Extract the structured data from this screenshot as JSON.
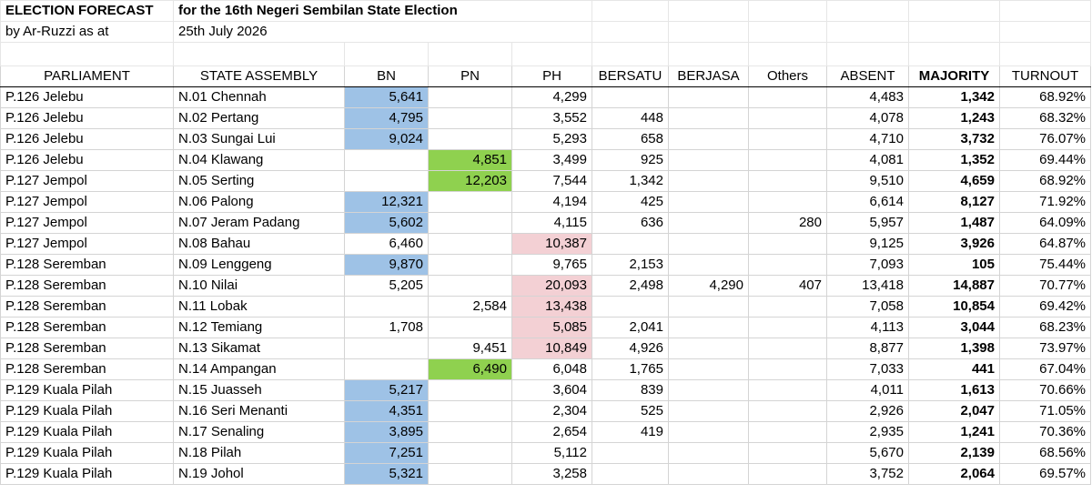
{
  "title": {
    "line1_left": "ELECTION FORECAST",
    "line1_right": "for the 16th Negeri Sembilan State Election",
    "line2_left": "by Ar-Ruzzi as at",
    "line2_right": "25th July 2026"
  },
  "columns": [
    "PARLIAMENT",
    "STATE ASSEMBLY",
    "BN",
    "PN",
    "PH",
    "BERSATU",
    "BERJASA",
    "Others",
    "ABSENT",
    "MAJORITY",
    "TURNOUT"
  ],
  "colors": {
    "BN": "#9ec2e6",
    "PN": "#8fd14f",
    "PH": "#f3d0d4"
  },
  "rows": [
    {
      "parliament": "P.126 Jelebu",
      "seat": "N.01 Chennah",
      "bn": "5,641",
      "pn": "",
      "ph": "4,299",
      "bersatu": "",
      "berjasa": "",
      "others": "",
      "absent": "4,483",
      "majority": "1,342",
      "turnout": "68.92%",
      "winner": "BN"
    },
    {
      "parliament": "P.126 Jelebu",
      "seat": "N.02 Pertang",
      "bn": "4,795",
      "pn": "",
      "ph": "3,552",
      "bersatu": "448",
      "berjasa": "",
      "others": "",
      "absent": "4,078",
      "majority": "1,243",
      "turnout": "68.32%",
      "winner": "BN"
    },
    {
      "parliament": "P.126 Jelebu",
      "seat": "N.03 Sungai Lui",
      "bn": "9,024",
      "pn": "",
      "ph": "5,293",
      "bersatu": "658",
      "berjasa": "",
      "others": "",
      "absent": "4,710",
      "majority": "3,732",
      "turnout": "76.07%",
      "winner": "BN"
    },
    {
      "parliament": "P.126 Jelebu",
      "seat": "N.04 Klawang",
      "bn": "",
      "pn": "4,851",
      "ph": "3,499",
      "bersatu": "925",
      "berjasa": "",
      "others": "",
      "absent": "4,081",
      "majority": "1,352",
      "turnout": "69.44%",
      "winner": "PN"
    },
    {
      "parliament": "P.127 Jempol",
      "seat": "N.05 Serting",
      "bn": "",
      "pn": "12,203",
      "ph": "7,544",
      "bersatu": "1,342",
      "berjasa": "",
      "others": "",
      "absent": "9,510",
      "majority": "4,659",
      "turnout": "68.92%",
      "winner": "PN"
    },
    {
      "parliament": "P.127 Jempol",
      "seat": "N.06 Palong",
      "bn": "12,321",
      "pn": "",
      "ph": "4,194",
      "bersatu": "425",
      "berjasa": "",
      "others": "",
      "absent": "6,614",
      "majority": "8,127",
      "turnout": "71.92%",
      "winner": "BN"
    },
    {
      "parliament": "P.127 Jempol",
      "seat": "N.07 Jeram Padang",
      "bn": "5,602",
      "pn": "",
      "ph": "4,115",
      "bersatu": "636",
      "berjasa": "",
      "others": "280",
      "absent": "5,957",
      "majority": "1,487",
      "turnout": "64.09%",
      "winner": "BN"
    },
    {
      "parliament": "P.127 Jempol",
      "seat": "N.08 Bahau",
      "bn": "6,460",
      "pn": "",
      "ph": "10,387",
      "bersatu": "",
      "berjasa": "",
      "others": "",
      "absent": "9,125",
      "majority": "3,926",
      "turnout": "64.87%",
      "winner": "PH"
    },
    {
      "parliament": "P.128 Seremban",
      "seat": "N.09 Lenggeng",
      "bn": "9,870",
      "pn": "",
      "ph": "9,765",
      "bersatu": "2,153",
      "berjasa": "",
      "others": "",
      "absent": "7,093",
      "majority": "105",
      "turnout": "75.44%",
      "winner": "BN"
    },
    {
      "parliament": "P.128 Seremban",
      "seat": "N.10 Nilai",
      "bn": "5,205",
      "pn": "",
      "ph": "20,093",
      "bersatu": "2,498",
      "berjasa": "4,290",
      "others": "407",
      "absent": "13,418",
      "majority": "14,887",
      "turnout": "70.77%",
      "winner": "PH"
    },
    {
      "parliament": "P.128 Seremban",
      "seat": "N.11 Lobak",
      "bn": "",
      "pn": "2,584",
      "ph": "13,438",
      "bersatu": "",
      "berjasa": "",
      "others": "",
      "absent": "7,058",
      "majority": "10,854",
      "turnout": "69.42%",
      "winner": "PH"
    },
    {
      "parliament": "P.128 Seremban",
      "seat": "N.12 Temiang",
      "bn": "1,708",
      "pn": "",
      "ph": "5,085",
      "bersatu": "2,041",
      "berjasa": "",
      "others": "",
      "absent": "4,113",
      "majority": "3,044",
      "turnout": "68.23%",
      "winner": "PH"
    },
    {
      "parliament": "P.128 Seremban",
      "seat": "N.13 Sikamat",
      "bn": "",
      "pn": "9,451",
      "ph": "10,849",
      "bersatu": "4,926",
      "berjasa": "",
      "others": "",
      "absent": "8,877",
      "majority": "1,398",
      "turnout": "73.97%",
      "winner": "PH"
    },
    {
      "parliament": "P.128 Seremban",
      "seat": "N.14 Ampangan",
      "bn": "",
      "pn": "6,490",
      "ph": "6,048",
      "bersatu": "1,765",
      "berjasa": "",
      "others": "",
      "absent": "7,033",
      "majority": "441",
      "turnout": "67.04%",
      "winner": "PN"
    },
    {
      "parliament": "P.129 Kuala Pilah",
      "seat": "N.15 Juasseh",
      "bn": "5,217",
      "pn": "",
      "ph": "3,604",
      "bersatu": "839",
      "berjasa": "",
      "others": "",
      "absent": "4,011",
      "majority": "1,613",
      "turnout": "70.66%",
      "winner": "BN"
    },
    {
      "parliament": "P.129 Kuala Pilah",
      "seat": "N.16 Seri Menanti",
      "bn": "4,351",
      "pn": "",
      "ph": "2,304",
      "bersatu": "525",
      "berjasa": "",
      "others": "",
      "absent": "2,926",
      "majority": "2,047",
      "turnout": "71.05%",
      "winner": "BN"
    },
    {
      "parliament": "P.129 Kuala Pilah",
      "seat": "N.17 Senaling",
      "bn": "3,895",
      "pn": "",
      "ph": "2,654",
      "bersatu": "419",
      "berjasa": "",
      "others": "",
      "absent": "2,935",
      "majority": "1,241",
      "turnout": "70.36%",
      "winner": "BN"
    },
    {
      "parliament": "P.129 Kuala Pilah",
      "seat": "N.18 Pilah",
      "bn": "7,251",
      "pn": "",
      "ph": "5,112",
      "bersatu": "",
      "berjasa": "",
      "others": "",
      "absent": "5,670",
      "majority": "2,139",
      "turnout": "68.56%",
      "winner": "BN"
    },
    {
      "parliament": "P.129 Kuala Pilah",
      "seat": "N.19 Johol",
      "bn": "5,321",
      "pn": "",
      "ph": "3,258",
      "bersatu": "",
      "berjasa": "",
      "others": "",
      "absent": "3,752",
      "majority": "2,064",
      "turnout": "69.57%",
      "winner": "BN"
    }
  ]
}
